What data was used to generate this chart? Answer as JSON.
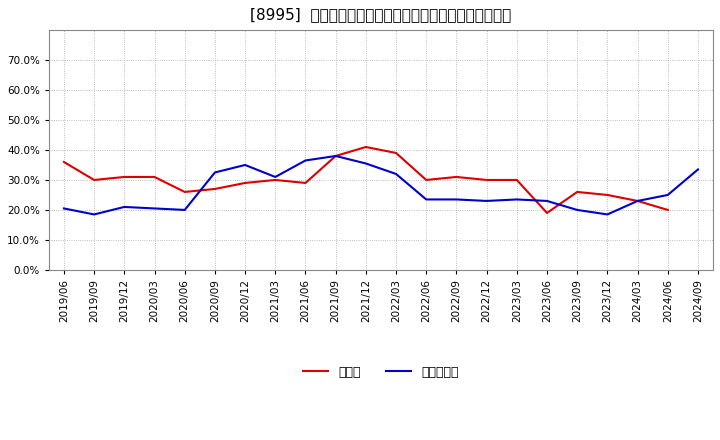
{
  "title": "[8995]  現須金、有利子負債の総資産に対する比率の推移",
  "x_labels": [
    "2019/06",
    "2019/09",
    "2019/12",
    "2020/03",
    "2020/06",
    "2020/09",
    "2020/12",
    "2021/03",
    "2021/06",
    "2021/09",
    "2021/12",
    "2022/03",
    "2022/06",
    "2022/09",
    "2022/12",
    "2023/03",
    "2023/06",
    "2023/09",
    "2023/12",
    "2024/03",
    "2024/06",
    "2024/09"
  ],
  "cash": [
    0.36,
    0.3,
    0.31,
    0.31,
    0.26,
    0.27,
    0.29,
    0.3,
    0.29,
    0.38,
    0.41,
    0.39,
    0.3,
    0.31,
    0.3,
    0.3,
    0.19,
    0.26,
    0.25,
    0.23,
    0.2,
    null
  ],
  "debt": [
    0.205,
    0.185,
    0.21,
    0.205,
    0.2,
    0.325,
    0.35,
    0.31,
    0.365,
    0.38,
    0.355,
    0.32,
    0.235,
    0.235,
    0.23,
    0.235,
    0.23,
    0.2,
    0.185,
    0.23,
    0.25,
    0.335
  ],
  "cash_color": "#dd0000",
  "debt_color": "#0000cc",
  "legend_cash": "現須金",
  "legend_debt": "有利子負債",
  "ylim": [
    0.0,
    0.8
  ],
  "yticks": [
    0.0,
    0.1,
    0.2,
    0.3,
    0.4,
    0.5,
    0.6,
    0.7
  ],
  "background_color": "#ffffff",
  "plot_bg_color": "#ffffff",
  "grid_color": "#aaaaaa",
  "title_fontsize": 11,
  "axis_fontsize": 7.5,
  "legend_fontsize": 9
}
